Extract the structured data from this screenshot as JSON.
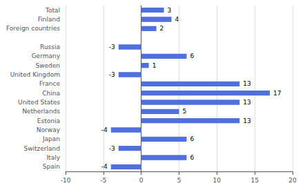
{
  "chart_data": {
    "type": "bar",
    "orientation": "horizontal",
    "categories": [
      "Total",
      "Finland",
      "Foreign countries",
      null,
      "Russia",
      "Germany",
      "Sweden",
      "United Kingdom",
      "France",
      "China",
      "United States",
      "Netherlands",
      "Estonia",
      "Norway",
      "Japan",
      "Switzerland",
      "Italy",
      "Spain"
    ],
    "values": [
      3,
      4,
      2,
      null,
      -3,
      6,
      1,
      -3,
      13,
      17,
      13,
      5,
      13,
      -4,
      6,
      -3,
      6,
      -4
    ],
    "xlim": [
      -10,
      20
    ],
    "xticks": [
      -10,
      -5,
      0,
      5,
      10,
      15,
      20
    ],
    "grid": true,
    "data_labels": true
  }
}
